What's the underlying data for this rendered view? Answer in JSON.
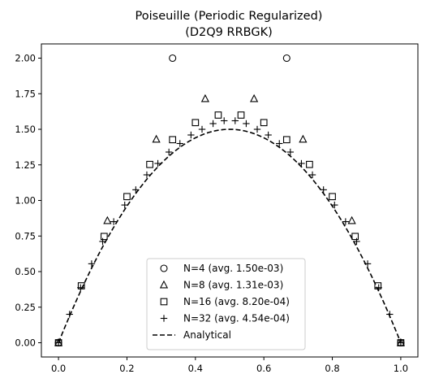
{
  "chart_data": {
    "type": "scatter",
    "title": [
      "Poiseuille (Periodic Regularized)",
      "(D2Q9 RRBGK)"
    ],
    "xlabel": "",
    "ylabel": "",
    "xlim": [
      -0.05,
      1.05
    ],
    "ylim": [
      -0.1,
      2.1
    ],
    "xticks": [
      0.0,
      0.2,
      0.4,
      0.6,
      0.8,
      1.0
    ],
    "xtick_labels": [
      "0.0",
      "0.2",
      "0.4",
      "0.6",
      "0.8",
      "1.0"
    ],
    "yticks": [
      0.0,
      0.25,
      0.5,
      0.75,
      1.0,
      1.25,
      1.5,
      1.75,
      2.0
    ],
    "ytick_labels": [
      "0.00",
      "0.25",
      "0.50",
      "0.75",
      "1.00",
      "1.25",
      "1.50",
      "1.75",
      "2.00"
    ],
    "grid": false,
    "legend_position": "bottom-center",
    "series": [
      {
        "name": "N=4 (avg. 1.50e-03)",
        "marker": "circle",
        "x": [
          0.0,
          0.3333,
          0.6667,
          1.0
        ],
        "y": [
          0.0,
          2.0,
          2.0,
          0.0
        ]
      },
      {
        "name": "N=8 (avg. 1.31e-03)",
        "marker": "triangle",
        "x": [
          0.0,
          0.1429,
          0.2857,
          0.4286,
          0.5714,
          0.7143,
          0.8571,
          1.0
        ],
        "y": [
          0.0,
          0.857,
          1.429,
          1.714,
          1.714,
          1.429,
          0.857,
          0.0
        ]
      },
      {
        "name": "N=16 (avg. 8.20e-04)",
        "marker": "square",
        "x": [
          0.0,
          0.0667,
          0.1333,
          0.2,
          0.2667,
          0.3333,
          0.4,
          0.4667,
          0.5333,
          0.6,
          0.6667,
          0.7333,
          0.8,
          0.8667,
          0.9333,
          1.0
        ],
        "y": [
          0.0,
          0.4,
          0.747,
          1.027,
          1.253,
          1.427,
          1.547,
          1.6,
          1.6,
          1.547,
          1.427,
          1.253,
          1.027,
          0.747,
          0.4,
          0.0
        ]
      },
      {
        "name": "N=32 (avg. 4.54e-04)",
        "marker": "plus",
        "x": [
          0.0,
          0.0323,
          0.0645,
          0.0968,
          0.129,
          0.1613,
          0.1935,
          0.2258,
          0.2581,
          0.2903,
          0.3226,
          0.3548,
          0.3871,
          0.4194,
          0.4516,
          0.4839,
          0.5161,
          0.5484,
          0.5806,
          0.6129,
          0.6452,
          0.6774,
          0.7097,
          0.7419,
          0.7742,
          0.8065,
          0.8387,
          0.871,
          0.9032,
          0.9355,
          0.9677,
          1.0
        ],
        "y": [
          0.0,
          0.2,
          0.387,
          0.555,
          0.712,
          0.851,
          0.968,
          1.075,
          1.18,
          1.26,
          1.34,
          1.4,
          1.46,
          1.5,
          1.54,
          1.56,
          1.56,
          1.54,
          1.5,
          1.46,
          1.4,
          1.34,
          1.26,
          1.18,
          1.075,
          0.968,
          0.851,
          0.712,
          0.555,
          0.387,
          0.2,
          0.0
        ]
      },
      {
        "name": "Analytical",
        "marker": "dashed-line",
        "function": "6*x*(1-x)",
        "x_range": [
          0.0,
          1.0
        ]
      }
    ]
  }
}
